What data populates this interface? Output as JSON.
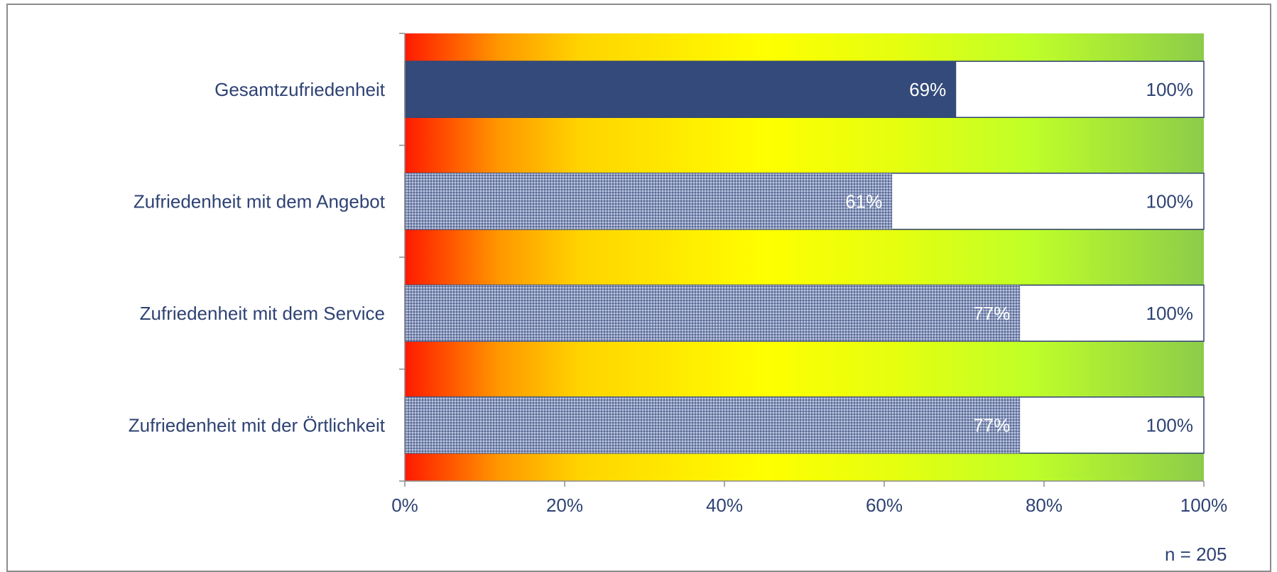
{
  "chart_data": {
    "type": "bar",
    "orientation": "horizontal",
    "categories": [
      "Gesamtzufriedenheit",
      "Zufriedenheit mit dem Angebot",
      "Zufriedenheit mit dem Service",
      "Zufriedenheit mit der Örtlichkeit"
    ],
    "series": [
      {
        "values": [
          69,
          61,
          77,
          77
        ],
        "value_labels": [
          "69%",
          "61%",
          "77%",
          "77%"
        ]
      },
      {
        "values": [
          100,
          100,
          100,
          100
        ],
        "value_labels": [
          "100%",
          "100%",
          "100%",
          "100%"
        ]
      }
    ],
    "xlim": [
      0,
      100
    ],
    "x_ticks": [
      "0%",
      "20%",
      "40%",
      "60%",
      "80%",
      "100%"
    ],
    "background": "gradient red-orange-yellow-green (0% to 100%)",
    "colors": {
      "highlight_bar": "#334a7a",
      "pattern_bar": "#8a9bbf",
      "total_bar_fill": "#ffffff",
      "total_bar_border": "#2e4273",
      "text": "#2e4273",
      "gradient": [
        "#ff1a00",
        "#ff9900",
        "#ffd400",
        "#ffff00",
        "#c6ff1a",
        "#8ccc4a"
      ]
    },
    "grid": false
  },
  "note": "n = 205"
}
